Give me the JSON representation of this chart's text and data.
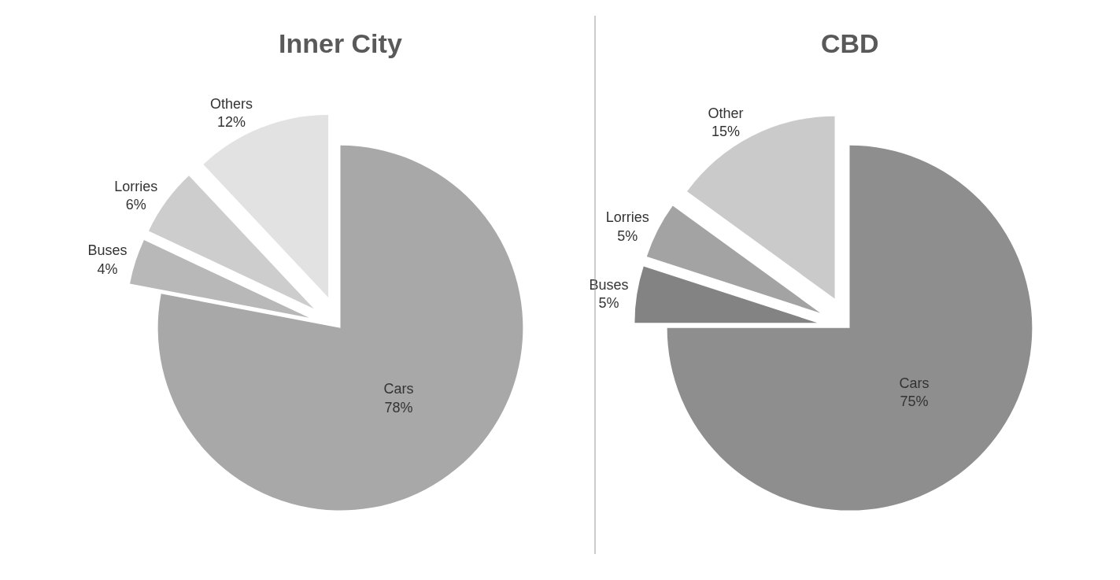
{
  "chart_data": [
    {
      "type": "pie",
      "title": "Inner City",
      "categories": [
        "Cars",
        "Buses",
        "Lorries",
        "Others"
      ],
      "values": [
        78,
        4,
        6,
        12
      ],
      "value_labels": [
        "78%",
        "4%",
        "6%",
        "12%"
      ],
      "colors": [
        "#a8a8a8",
        "#b8b8b8",
        "#cdcdcd",
        "#e2e2e2"
      ]
    },
    {
      "type": "pie",
      "title": "CBD",
      "categories": [
        "Cars",
        "Buses",
        "Lorries",
        "Other"
      ],
      "values": [
        75,
        5,
        5,
        15
      ],
      "value_labels": [
        "75%",
        "5%",
        "5%",
        "15%"
      ],
      "colors": [
        "#8e8e8e",
        "#838383",
        "#a3a3a3",
        "#cacaca"
      ]
    }
  ]
}
